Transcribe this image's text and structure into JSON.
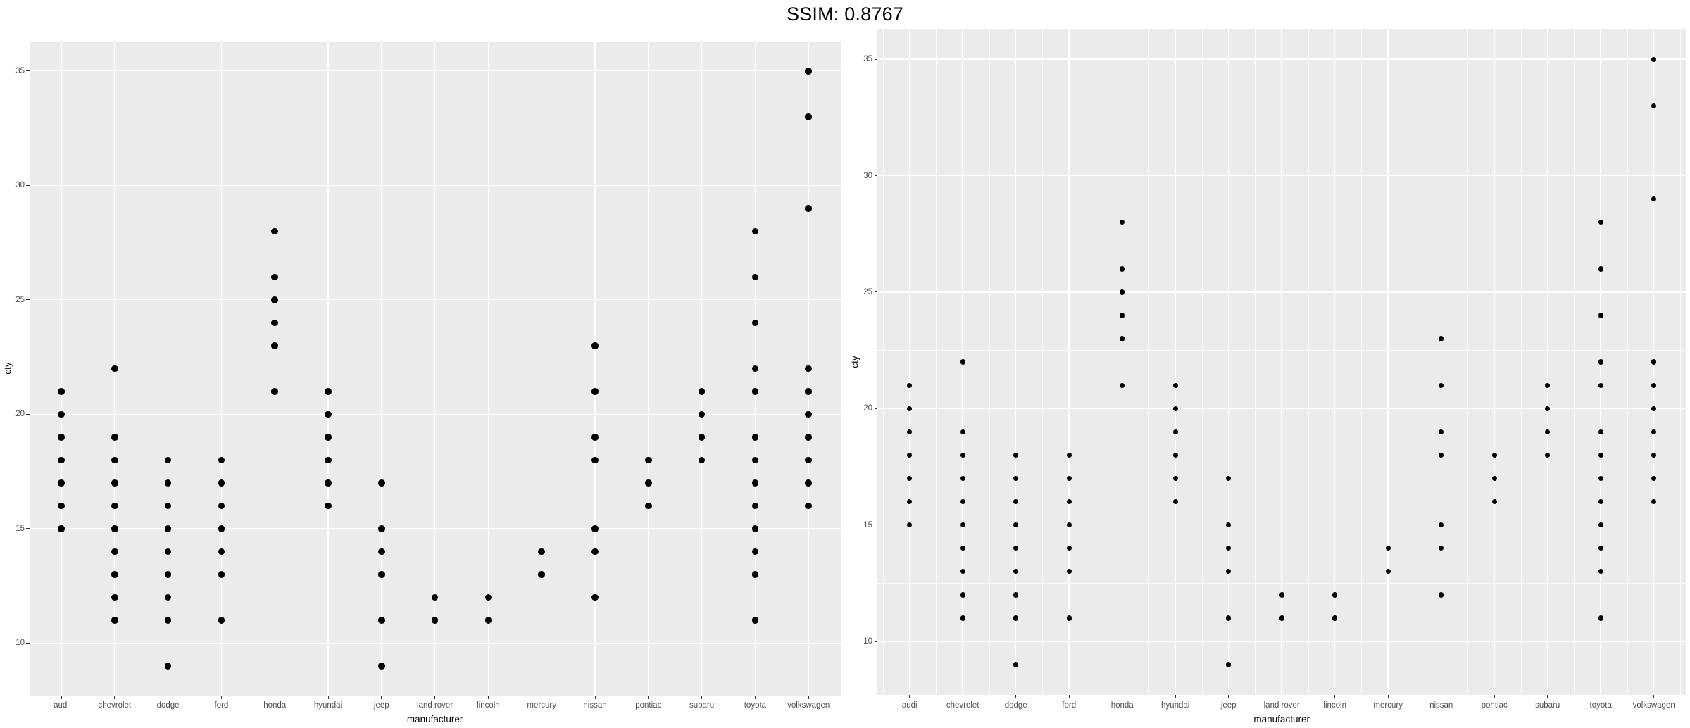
{
  "title": "SSIM: 0.8767",
  "colors": {
    "panel_bg": "#EBEBEB",
    "grid": "#FFFFFF",
    "point": "#000000",
    "tick_label": "#4D4D4D",
    "tick_mark": "#333333",
    "axis_title": "#000000",
    "title_text": "#000000",
    "outer_bg": "#FFFFFF"
  },
  "chart_data": [
    {
      "type": "scatter",
      "panel": "left",
      "title": "",
      "xlabel": "manufacturer",
      "ylabel": "cty",
      "categories": [
        "audi",
        "chevrolet",
        "dodge",
        "ford",
        "honda",
        "hyundai",
        "jeep",
        "land rover",
        "lincoln",
        "mercury",
        "nissan",
        "pontiac",
        "subaru",
        "toyota",
        "volkswagen"
      ],
      "series": [
        {
          "name": "audi",
          "values": [
            15,
            16,
            17,
            18,
            19,
            20,
            21
          ]
        },
        {
          "name": "chevrolet",
          "values": [
            11,
            12,
            13,
            14,
            15,
            16,
            17,
            18,
            19,
            22
          ]
        },
        {
          "name": "dodge",
          "values": [
            9,
            11,
            12,
            13,
            14,
            15,
            16,
            17,
            18
          ]
        },
        {
          "name": "ford",
          "values": [
            11,
            13,
            14,
            15,
            16,
            17,
            18
          ]
        },
        {
          "name": "honda",
          "values": [
            21,
            23,
            24,
            25,
            26,
            28
          ]
        },
        {
          "name": "hyundai",
          "values": [
            16,
            17,
            18,
            19,
            20,
            21
          ]
        },
        {
          "name": "jeep",
          "values": [
            9,
            11,
            13,
            14,
            15,
            17
          ]
        },
        {
          "name": "land rover",
          "values": [
            11,
            12
          ]
        },
        {
          "name": "lincoln",
          "values": [
            11,
            12
          ]
        },
        {
          "name": "mercury",
          "values": [
            13,
            14
          ]
        },
        {
          "name": "nissan",
          "values": [
            12,
            14,
            15,
            18,
            19,
            21,
            23
          ]
        },
        {
          "name": "pontiac",
          "values": [
            16,
            17,
            18
          ]
        },
        {
          "name": "subaru",
          "values": [
            18,
            19,
            20,
            21
          ]
        },
        {
          "name": "toyota",
          "values": [
            11,
            13,
            14,
            15,
            16,
            17,
            18,
            19,
            21,
            22,
            24,
            26,
            28
          ]
        },
        {
          "name": "volkswagen",
          "values": [
            16,
            17,
            18,
            19,
            20,
            21,
            22,
            29,
            33,
            35
          ]
        }
      ],
      "yticks": [
        10,
        15,
        20,
        25,
        30,
        35
      ],
      "ylim": [
        7.7,
        36.3
      ],
      "grid": "major-only",
      "legend": "none"
    },
    {
      "type": "scatter",
      "panel": "right",
      "title": "",
      "xlabel": "manufacturer",
      "ylabel": "cty",
      "categories": [
        "audi",
        "chevrolet",
        "dodge",
        "ford",
        "honda",
        "hyundai",
        "jeep",
        "land rover",
        "lincoln",
        "mercury",
        "nissan",
        "pontiac",
        "subaru",
        "toyota",
        "volkswagen"
      ],
      "series": [
        {
          "name": "audi",
          "values": [
            15,
            16,
            17,
            18,
            19,
            20,
            21
          ]
        },
        {
          "name": "chevrolet",
          "values": [
            11,
            12,
            13,
            14,
            15,
            16,
            17,
            18,
            19,
            22
          ]
        },
        {
          "name": "dodge",
          "values": [
            9,
            11,
            12,
            13,
            14,
            15,
            16,
            17,
            18
          ]
        },
        {
          "name": "ford",
          "values": [
            11,
            13,
            14,
            15,
            16,
            17,
            18
          ]
        },
        {
          "name": "honda",
          "values": [
            21,
            23,
            24,
            25,
            26,
            28
          ]
        },
        {
          "name": "hyundai",
          "values": [
            16,
            17,
            18,
            19,
            20,
            21
          ]
        },
        {
          "name": "jeep",
          "values": [
            9,
            11,
            13,
            14,
            15,
            17
          ]
        },
        {
          "name": "land rover",
          "values": [
            11,
            12
          ]
        },
        {
          "name": "lincoln",
          "values": [
            11,
            12
          ]
        },
        {
          "name": "mercury",
          "values": [
            13,
            14
          ]
        },
        {
          "name": "nissan",
          "values": [
            12,
            14,
            15,
            18,
            19,
            21,
            23
          ]
        },
        {
          "name": "pontiac",
          "values": [
            16,
            17,
            18
          ]
        },
        {
          "name": "subaru",
          "values": [
            18,
            19,
            20,
            21
          ]
        },
        {
          "name": "toyota",
          "values": [
            11,
            13,
            14,
            15,
            16,
            17,
            18,
            19,
            21,
            22,
            24,
            26,
            28
          ]
        },
        {
          "name": "volkswagen",
          "values": [
            16,
            17,
            18,
            19,
            20,
            21,
            22,
            29,
            33,
            35
          ]
        }
      ],
      "yticks": [
        10,
        15,
        20,
        25,
        30,
        35
      ],
      "ylim": [
        7.7,
        36.3
      ],
      "grid": "major+minor",
      "legend": "none"
    }
  ]
}
